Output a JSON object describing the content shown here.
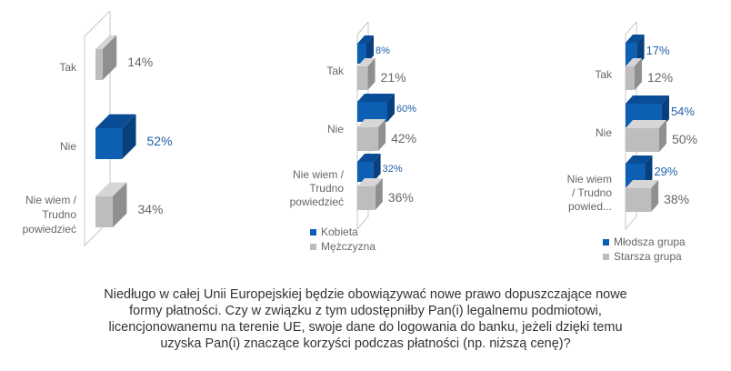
{
  "colors": {
    "blue_front": "#0d5fb3",
    "blue_top": "#0a4d96",
    "blue_side": "#083f7d",
    "blue_text": "#1f5fa8",
    "gray_front": "#bdbdbd",
    "gray_top": "#d6d6d6",
    "gray_side": "#8f8f8f",
    "gray_text": "#666666",
    "axis": "#c8c8c8"
  },
  "chart_data": [
    {
      "type": "bar",
      "orientation": "horizontal-3d",
      "categories": [
        "Tak",
        "Nie",
        "Nie wiem / Trudno powiedzieć"
      ],
      "category_lines": [
        [
          "Tak"
        ],
        [
          "Nie"
        ],
        [
          "Nie wiem /",
          "Trudno",
          "powiedzieć"
        ]
      ],
      "series": [
        {
          "values": [
            14,
            52,
            34
          ],
          "labels": [
            "14%",
            "52%",
            "34%"
          ],
          "colors": [
            "gray",
            "blue",
            "gray"
          ]
        }
      ],
      "xlim": [
        0,
        100
      ],
      "grid": false,
      "legend": "none"
    },
    {
      "type": "bar",
      "orientation": "horizontal-3d",
      "categories": [
        "Tak",
        "Nie",
        "Nie wiem / Trudno powiedzieć"
      ],
      "category_lines": [
        [
          "Tak"
        ],
        [
          "Nie"
        ],
        [
          "Nie wiem /",
          "Trudno",
          "powiedzieć"
        ]
      ],
      "series": [
        {
          "name": "Kobieta",
          "values": [
            8,
            60,
            32
          ],
          "labels": [
            "8%",
            "60%",
            "32%"
          ],
          "color": "blue"
        },
        {
          "name": "Mężczyzna",
          "values": [
            21,
            42,
            36
          ],
          "labels": [
            "21%",
            "42%",
            "36%"
          ],
          "color": "gray"
        }
      ],
      "xlim": [
        0,
        100
      ],
      "grid": false,
      "legend": "bottom-left"
    },
    {
      "type": "bar",
      "orientation": "horizontal-3d",
      "categories": [
        "Tak",
        "Nie",
        "Nie wiem / Trudno powied..."
      ],
      "category_lines": [
        [
          "Tak"
        ],
        [
          "Nie"
        ],
        [
          "Nie wiem",
          "/ Trudno",
          "powied..."
        ]
      ],
      "series": [
        {
          "name": "Młodsza grupa",
          "values": [
            17,
            54,
            29
          ],
          "labels": [
            "17%",
            "54%",
            "29%"
          ],
          "color": "blue"
        },
        {
          "name": "Starsza grupa",
          "values": [
            12,
            50,
            38
          ],
          "labels": [
            "12%",
            "50%",
            "38%"
          ],
          "color": "gray"
        }
      ],
      "xlim": [
        0,
        100
      ],
      "grid": false,
      "legend": "bottom-left"
    }
  ],
  "caption": {
    "lines": [
      "Niedługo w całej Unii Europejskiej będzie obowiązywać nowe prawo dopuszczające nowe",
      "formy płatności. Czy w związku z tym udostępniłby Pan(i) legalnemu podmiotowi,",
      "licencjonowanemu na terenie UE, swoje dane do logowania do banku, jeżeli dzięki temu",
      "uzyska Pan(i) znaczące korzyści podczas płatności (np. niższą cenę)?"
    ]
  }
}
